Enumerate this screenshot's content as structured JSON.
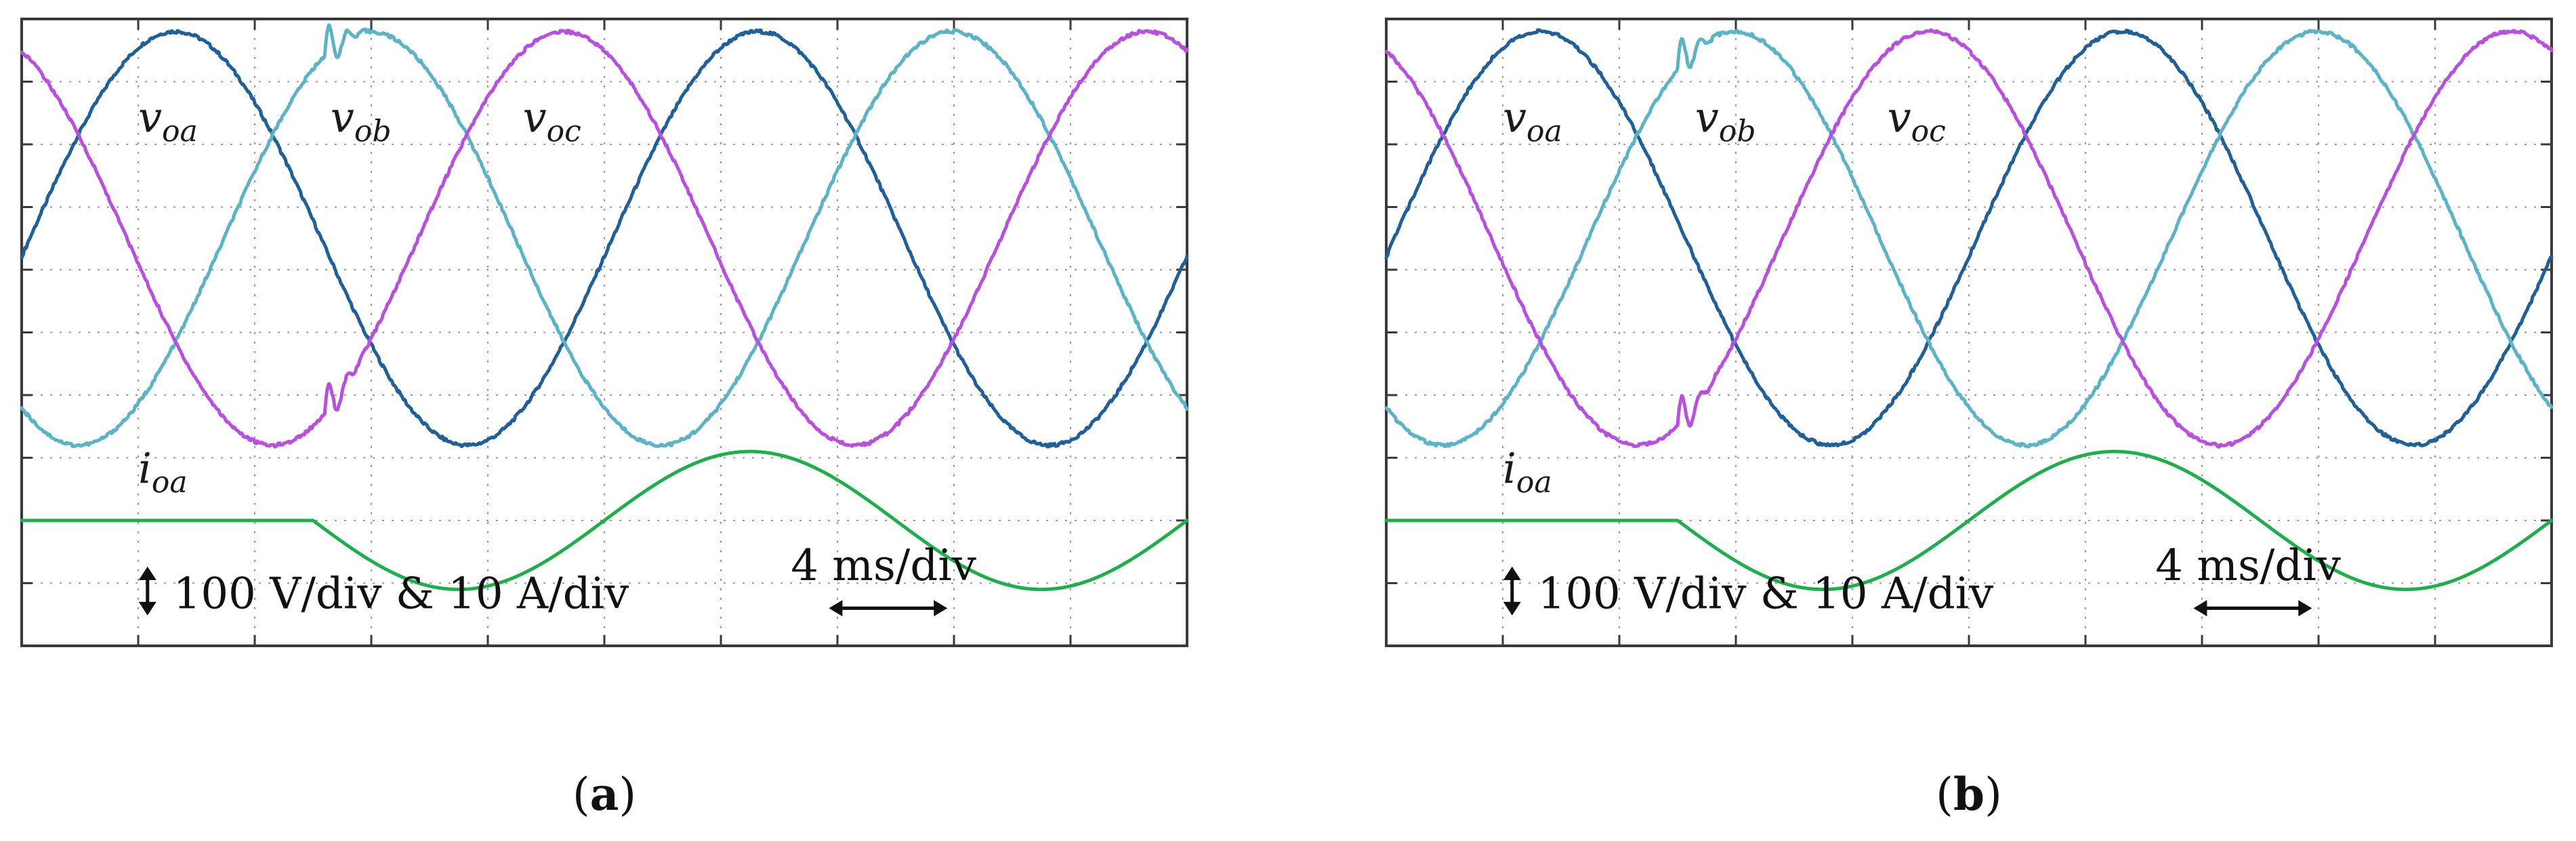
{
  "chart_data": [
    {
      "type": "line",
      "panel_label": "(a)",
      "panel_letter": "a",
      "x_div": 10,
      "y_div": 10,
      "grid": true,
      "xlim": [
        0,
        10
      ],
      "ylim": [
        -5,
        5
      ],
      "xlabel": "",
      "ylabel": "",
      "scale_voltage": "100 V/div & 10 A/div",
      "scale_time": "4 ms/div",
      "series": [
        {
          "name": "v_oa",
          "label_main": "v",
          "label_sub": "oa",
          "color": "#1f5f9a",
          "kind": "sine",
          "amplitude_div": 3.3,
          "offset_div": 1.5,
          "period_div": 5,
          "phase_deg": -5,
          "label_pos": [
            1.0,
            3.2
          ]
        },
        {
          "name": "v_ob",
          "label_main": "v",
          "label_sub": "ob",
          "color": "#5bb3c8",
          "kind": "sine",
          "amplitude_div": 3.3,
          "offset_div": 1.5,
          "period_div": 5,
          "phase_deg": -125,
          "transient_at_div": 2.6,
          "label_pos": [
            2.65,
            3.2
          ]
        },
        {
          "name": "v_oc",
          "label_main": "v",
          "label_sub": "oc",
          "color": "#b84fe0",
          "kind": "sine",
          "amplitude_div": 3.3,
          "offset_div": 1.5,
          "period_div": 5,
          "phase_deg": 115,
          "transient_at_div": 2.6,
          "label_pos": [
            4.3,
            3.2
          ]
        },
        {
          "name": "i_oa",
          "label_main": "i",
          "label_sub": "oa",
          "color": "#1db04a",
          "kind": "step_sine",
          "zero_level_div": -3.0,
          "amplitude_div": 1.1,
          "period_div": 5,
          "start_div": 2.5,
          "label_pos": [
            1.0,
            -2.4
          ]
        }
      ]
    },
    {
      "type": "line",
      "panel_label": "(b)",
      "panel_letter": "b",
      "x_div": 10,
      "y_div": 10,
      "grid": true,
      "xlim": [
        0,
        10
      ],
      "ylim": [
        -5,
        5
      ],
      "xlabel": "",
      "ylabel": "",
      "scale_voltage": "100 V/div & 10 A/div",
      "scale_time": "4 ms/div",
      "series": [
        {
          "name": "v_oa",
          "label_main": "v",
          "label_sub": "oa",
          "color": "#1f5f9a",
          "kind": "sine",
          "amplitude_div": 3.3,
          "offset_div": 1.5,
          "period_div": 5,
          "phase_deg": -5,
          "label_pos": [
            1.0,
            3.2
          ]
        },
        {
          "name": "v_ob",
          "label_main": "v",
          "label_sub": "ob",
          "color": "#5bb3c8",
          "kind": "sine",
          "amplitude_div": 3.3,
          "offset_div": 1.5,
          "period_div": 5,
          "phase_deg": -125,
          "transient_at_div": 2.5,
          "label_pos": [
            2.65,
            3.2
          ]
        },
        {
          "name": "v_oc",
          "label_main": "v",
          "label_sub": "oc",
          "color": "#b84fe0",
          "kind": "sine",
          "amplitude_div": 3.3,
          "offset_div": 1.5,
          "period_div": 5,
          "phase_deg": 115,
          "transient_at_div": 2.5,
          "label_pos": [
            4.3,
            3.2
          ]
        },
        {
          "name": "i_oa",
          "label_main": "i",
          "label_sub": "oa",
          "color": "#1db04a",
          "kind": "step_sine",
          "zero_level_div": -3.0,
          "amplitude_div": 1.1,
          "period_div": 5,
          "start_div": 2.5,
          "label_pos": [
            1.0,
            -2.4
          ]
        }
      ]
    }
  ]
}
